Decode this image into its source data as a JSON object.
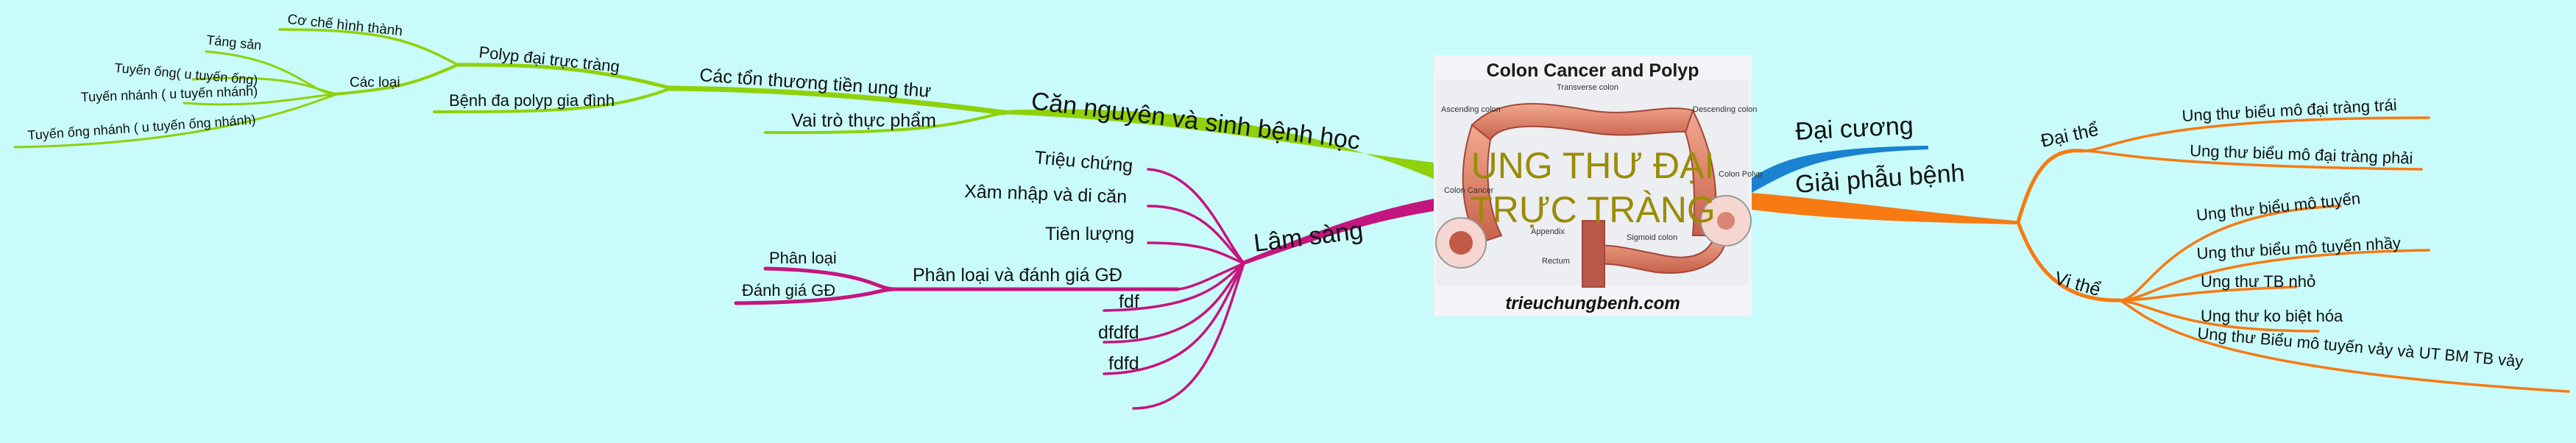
{
  "central": {
    "title_line1": "UNG THƯ ĐẠI",
    "title_line2": "TRỰC TRÀNG",
    "image_title": "Colon Cancer and Polyp",
    "image_caption": "trieuchungbenh.com",
    "anatomy_labels": {
      "transverse": "Transverse colon",
      "ascending": "Ascending colon",
      "descending": "Descending colon",
      "colon_polyp": "Colon Polyp",
      "colon_cancer": "Colon Cancer",
      "appendix": "Appendix",
      "rectum": "Rectum",
      "sigmoid": "Sigmoid colon"
    }
  },
  "colors": {
    "background": "#c9fbfb",
    "green": "#8fd10b",
    "magenta": "#c5157f",
    "blue": "#1a82d1",
    "orange": "#f77a12",
    "title": "#9a8c06"
  },
  "branches": {
    "can_nguyen": {
      "label": "Căn nguyên và sinh bệnh học",
      "cac_ton_thuong": {
        "label": "Các tổn thương tiền ung thư",
        "polyp": {
          "label": "Polyp đại trực tràng",
          "co_che": "Cơ chế hình thành",
          "cac_loai": {
            "label": "Các loại",
            "items": [
              "Táng sản",
              "Tuyến ống( u tuyến ống)",
              "Tuyến nhánh ( u tuyến nhánh)",
              "Tuyến ống nhánh ( u tuyến ống nhánh)"
            ]
          }
        },
        "benh_da_polyp": "Bệnh đa polyp gia đình"
      },
      "vai_tro": "Vai trò thực phẩm"
    },
    "lam_sang": {
      "label": "Lâm sàng",
      "items": [
        "Triệu chứng",
        "Xâm nhập và di căn",
        "Tiên lượng"
      ],
      "phan_loai_gd": {
        "label": "Phân loại và đánh giá GĐ",
        "items": [
          "Phân loại",
          "Đánh giá GĐ"
        ]
      },
      "extra": [
        "fdf",
        "dfdfd",
        "fdfd",
        ""
      ]
    },
    "dai_cuong": {
      "label": "Đại cương"
    },
    "giai_phau": {
      "label": "Giải phẫu bệnh",
      "dai_the": {
        "label": "Đại thể",
        "items": [
          "Ung thư biểu mô đại tràng trái",
          "Ung thư biểu mô đại tràng phải"
        ]
      },
      "vi_the": {
        "label": "Vi thể",
        "items": [
          "Ung thư biểu mô tuyến",
          "Ung thư biểu mô tuyến nhầy",
          "Ung thư TB nhỏ",
          "Ung thư ko biệt hóa",
          "Ung thư Biểu mô tuyến vảy và UT BM TB vảy"
        ]
      }
    }
  }
}
